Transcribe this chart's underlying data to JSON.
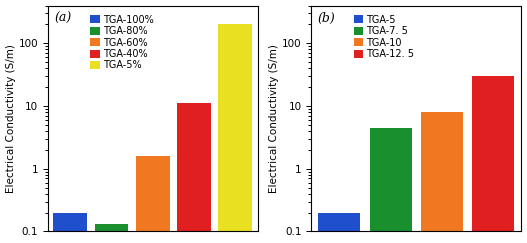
{
  "chart_a": {
    "label": "(a)",
    "categories": [
      "TGA-100%",
      "TGA-80%",
      "TGA-60%",
      "TGA-40%",
      "TGA-5%"
    ],
    "values": [
      0.2,
      0.13,
      1.6,
      11.0,
      200.0
    ],
    "colors": [
      "#1f4fcc",
      "#1a8f2e",
      "#f07820",
      "#e02020",
      "#e8e020"
    ],
    "ylabel": "Electrical Conductivity (S/m)",
    "ylim": [
      0.1,
      400
    ],
    "legend_labels": [
      "TGA-100%",
      "TGA-80%",
      "TGA-60%",
      "TGA-40%",
      "TGA-5%"
    ]
  },
  "chart_b": {
    "label": "(b)",
    "categories": [
      "TGA-5",
      "TGA-7.5",
      "TGA-10",
      "TGA-12.5"
    ],
    "values": [
      0.2,
      4.5,
      8.0,
      30.0
    ],
    "colors": [
      "#1f4fcc",
      "#1a8f2e",
      "#f07820",
      "#e02020"
    ],
    "ylabel": "Electrical Conductivity (S/m)",
    "ylim": [
      0.1,
      400
    ],
    "legend_labels": [
      "TGA-5",
      "TGA-7. 5",
      "TGA-10",
      "TGA-12. 5"
    ]
  },
  "bg_color": "#ffffff",
  "tick_label_size": 7.5,
  "legend_fontsize": 7.0,
  "ylabel_fontsize": 7.5,
  "label_fontsize": 9
}
